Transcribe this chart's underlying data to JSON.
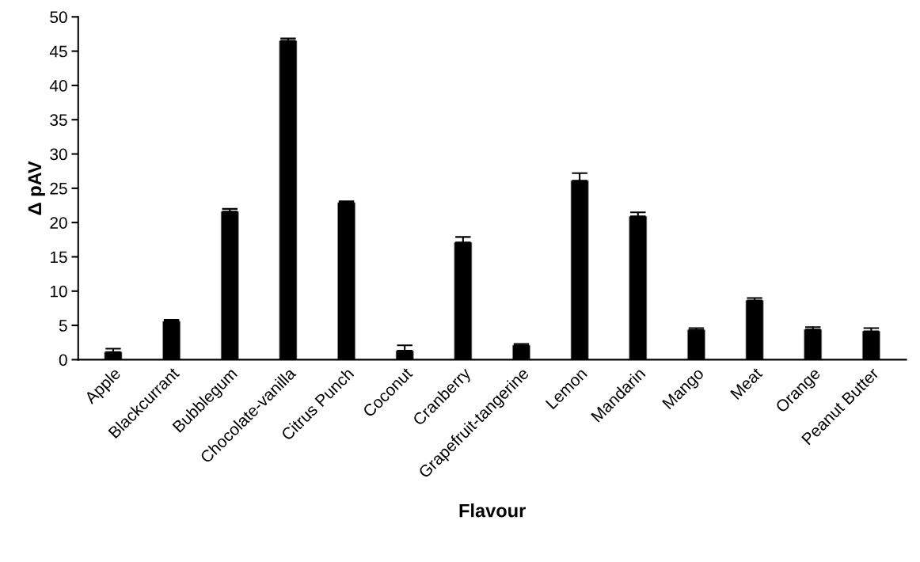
{
  "chart_data": {
    "type": "bar",
    "xlabel": "Flavour",
    "ylabel": "Δ pAV",
    "categories": [
      "Apple",
      "Blackcurrant",
      "Bubblegum",
      "Chocolate-vanilla",
      "Citrus Punch",
      "Coconut",
      "Cranberry",
      "Grapefruit-tangerine",
      "Lemon",
      "Mandarin",
      "Mango",
      "Meat",
      "Orange",
      "Peanut Butter"
    ],
    "values": [
      1.1,
      5.6,
      21.6,
      46.5,
      22.9,
      1.3,
      17.1,
      2.1,
      26.1,
      20.9,
      4.35,
      8.65,
      4.4,
      4.15
    ],
    "errors": [
      [
        1.1,
        1.6
      ],
      [
        5.6,
        5.8
      ],
      [
        21.6,
        22.0
      ],
      [
        46.5,
        46.85
      ],
      [
        22.9,
        23.1
      ],
      [
        1.3,
        2.1
      ],
      [
        17.1,
        17.9
      ],
      [
        2.1,
        2.3
      ],
      [
        26.1,
        27.2
      ],
      [
        20.9,
        21.5
      ],
      [
        4.35,
        4.6
      ],
      [
        8.65,
        9.0
      ],
      [
        4.4,
        4.75
      ],
      [
        4.15,
        4.6
      ]
    ],
    "color": "#000000",
    "ylim": [
      0,
      50
    ],
    "yticks": [
      0,
      5,
      10,
      15,
      20,
      25,
      30,
      35,
      40,
      45,
      50
    ],
    "grid": false,
    "legend": false
  }
}
